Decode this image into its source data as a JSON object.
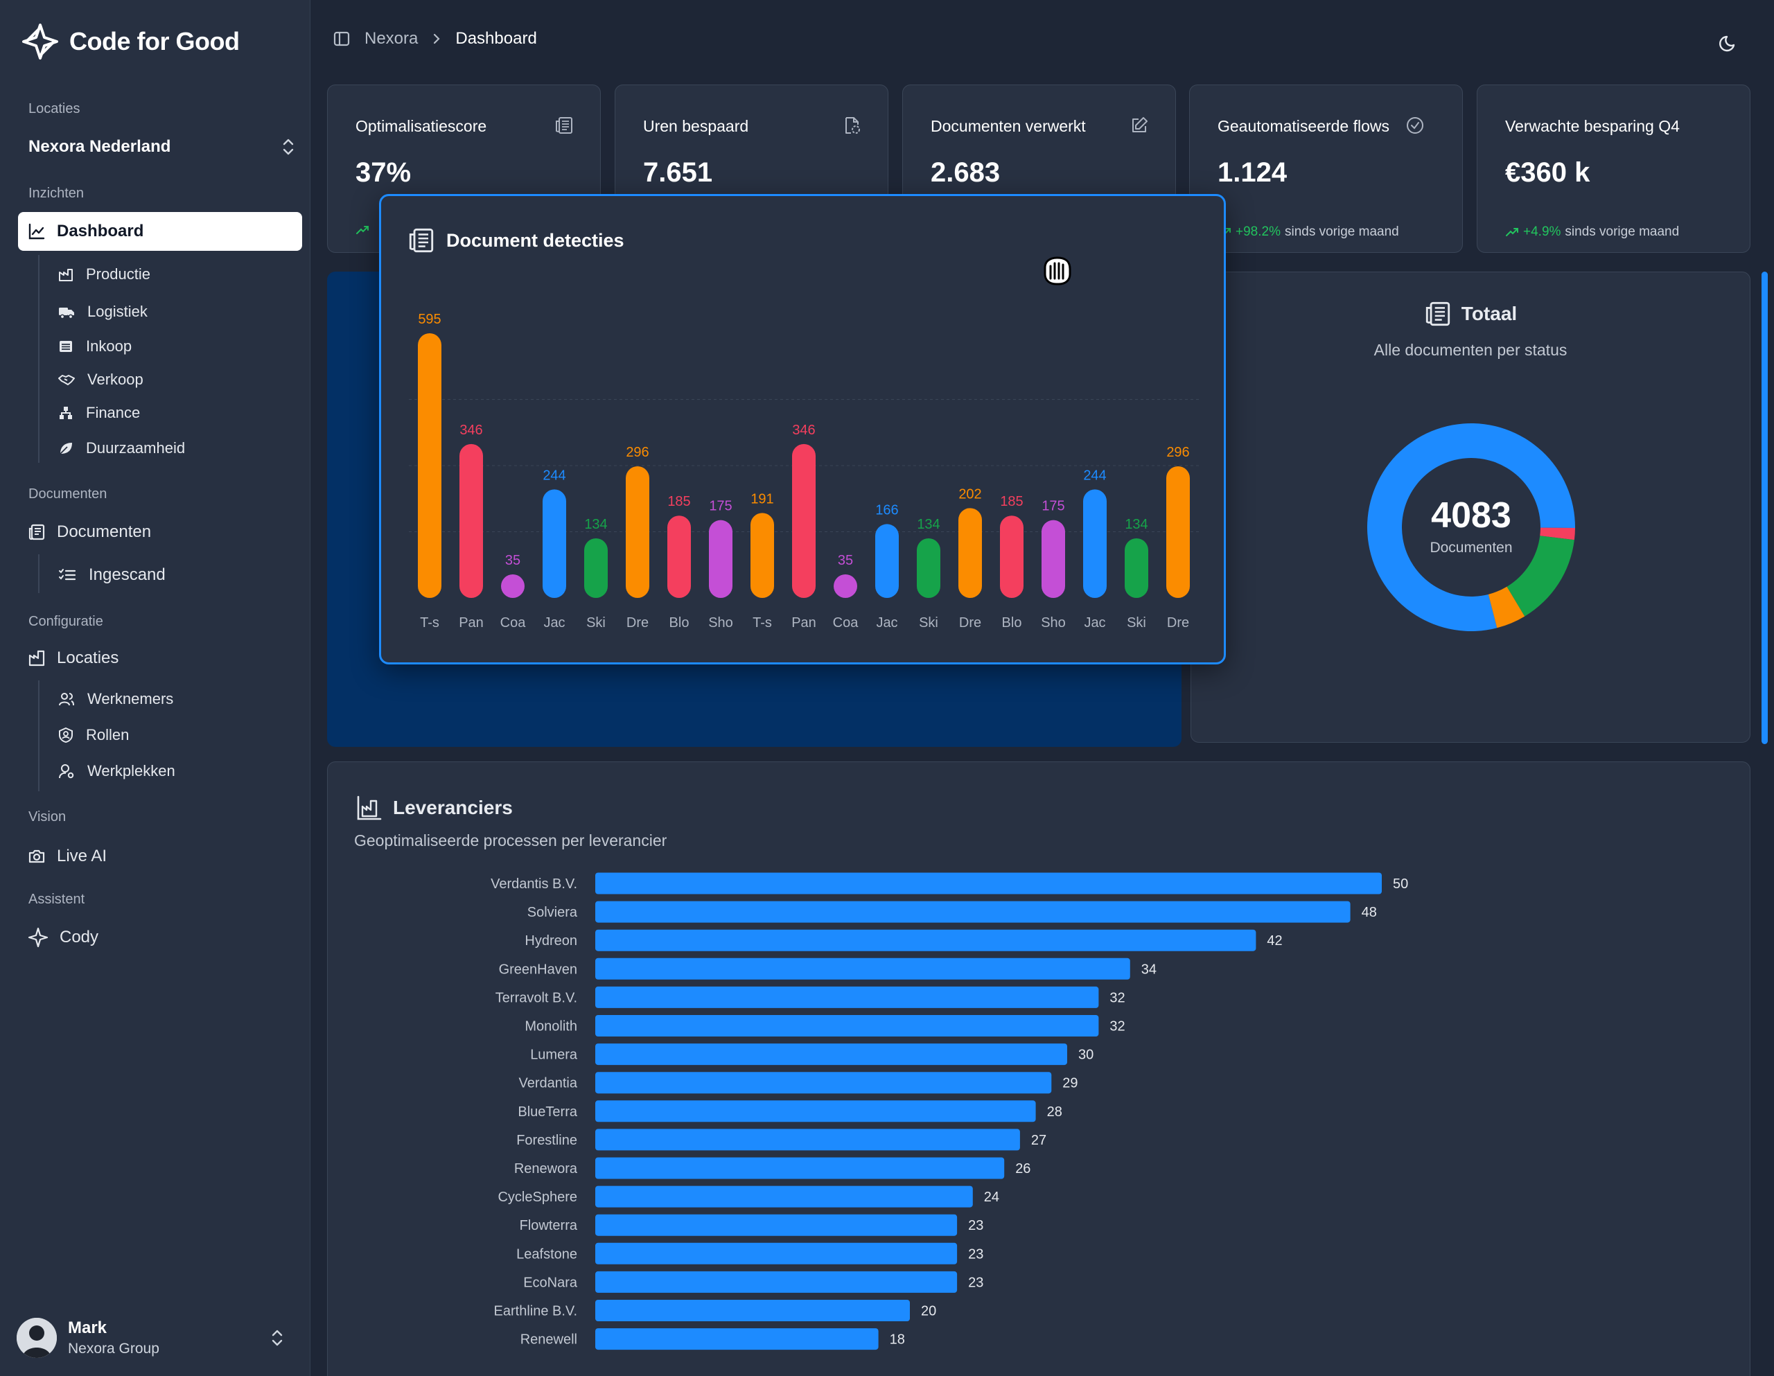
{
  "brand": {
    "name": "Code for Good"
  },
  "sidebar": {
    "sections": {
      "locaties": "Locaties",
      "inzichten": "Inzichten",
      "documenten": "Documenten",
      "configuratie": "Configuratie",
      "vision": "Vision",
      "assistent": "Assistent"
    },
    "location_selector": "Nexora Nederland",
    "items": {
      "dashboard": "Dashboard",
      "productie": "Productie",
      "logistiek": "Logistiek",
      "inkoop": "Inkoop",
      "verkoop": "Verkoop",
      "finance": "Finance",
      "duurzaamheid": "Duurzaamheid",
      "documenten": "Documenten",
      "ingescand": "Ingescand",
      "locaties": "Locaties",
      "werknemers": "Werknemers",
      "rollen": "Rollen",
      "werkplekken": "Werkplekken",
      "live_ai": "Live AI",
      "cody": "Cody"
    },
    "user": {
      "name": "Mark",
      "org": "Nexora Group"
    }
  },
  "topbar": {
    "breadcrumb": [
      "Nexora",
      "Dashboard"
    ]
  },
  "kpis": [
    {
      "title": "Optimalisatiescore",
      "value": "37%",
      "trend": "",
      "trend_text": ""
    },
    {
      "title": "Uren bespaard",
      "value": "7.651",
      "trend": "",
      "trend_text": ""
    },
    {
      "title": "Documenten verwerkt",
      "value": "2.683",
      "trend": "",
      "trend_text": ""
    },
    {
      "title": "Geautomatiseerde flows",
      "value": "1.124",
      "trend": "+98.2%",
      "trend_text": "sinds vorige maand"
    },
    {
      "title": "Verwachte besparing Q4",
      "value": "€360 k",
      "trend": "+4.9%",
      "trend_text": "sinds vorige maand"
    }
  ],
  "popup": {
    "title": "Document detecties"
  },
  "total": {
    "title": "Totaal",
    "subtitle": "Alle documenten per status",
    "center_value": "4083",
    "center_label": "Documenten"
  },
  "suppliers": {
    "title": "Leveranciers",
    "subtitle": "Geoptimaliseerde processen per leverancier"
  },
  "colors": {
    "accent": "#1d8bff",
    "orange": "#fb8c00",
    "red": "#f43f5e",
    "purple": "#c44fd6",
    "green": "#16a34a"
  },
  "chart_data": [
    {
      "type": "bar",
      "title": "Document detecties",
      "categories": [
        "T-s",
        "Pan",
        "Coa",
        "Jac",
        "Ski",
        "Dre",
        "Blo",
        "Sho",
        "T-s",
        "Pan",
        "Coa",
        "Jac",
        "Ski",
        "Dre",
        "Blo",
        "Sho",
        "Jac",
        "Ski",
        "Dre"
      ],
      "values": [
        595,
        346,
        35,
        244,
        134,
        296,
        185,
        175,
        191,
        346,
        35,
        166,
        134,
        202,
        185,
        175,
        244,
        134,
        296
      ],
      "bar_colors": [
        "#fb8c00",
        "#f43f5e",
        "#c44fd6",
        "#1d8bff",
        "#16a34a",
        "#fb8c00",
        "#f43f5e",
        "#c44fd6",
        "#fb8c00",
        "#f43f5e",
        "#c44fd6",
        "#1d8bff",
        "#16a34a",
        "#fb8c00",
        "#f43f5e",
        "#c44fd6",
        "#1d8bff",
        "#16a34a",
        "#fb8c00"
      ],
      "ylim": [
        0,
        595
      ],
      "grid": true
    },
    {
      "type": "pie",
      "title": "Totaal",
      "center_value": "4083",
      "slices": [
        {
          "name": "Blue",
          "value": 3230,
          "color": "#1d8bff"
        },
        {
          "name": "Red",
          "value": 75,
          "color": "#f43f5e"
        },
        {
          "name": "Green",
          "value": 590,
          "color": "#16a34a"
        },
        {
          "name": "Orange",
          "value": 188,
          "color": "#fb8c00"
        }
      ]
    },
    {
      "type": "bar",
      "orientation": "horizontal",
      "title": "Leveranciers",
      "categories": [
        "Verdantis B.V.",
        "Solviera",
        "Hydreon",
        "GreenHaven",
        "Terravolt B.V.",
        "Monolith",
        "Lumera",
        "Verdantia",
        "BlueTerra",
        "Forestline",
        "Renewora",
        "CycleSphere",
        "Flowterra",
        "Leafstone",
        "EcoNara",
        "Earthline B.V.",
        "Renewell"
      ],
      "values": [
        50,
        48,
        42,
        34,
        32,
        32,
        30,
        29,
        28,
        27,
        26,
        24,
        23,
        23,
        23,
        20,
        18
      ],
      "xlim": [
        0,
        50
      ]
    }
  ]
}
